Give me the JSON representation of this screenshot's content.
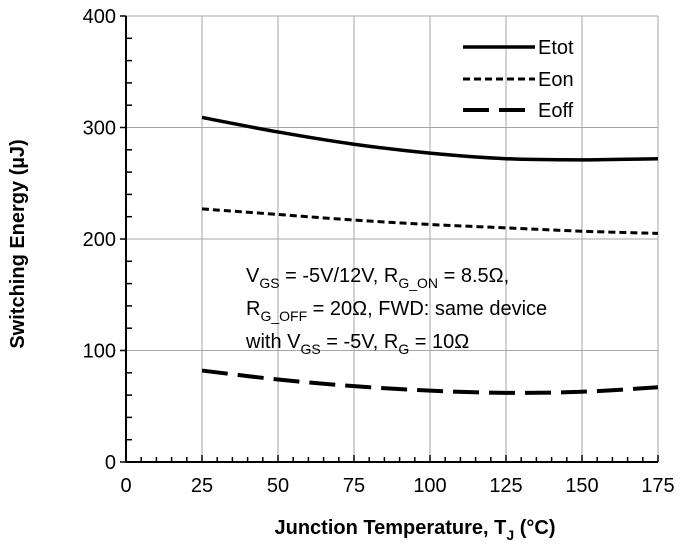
{
  "chart_data": {
    "type": "line",
    "xlabel": "Junction Temperature, T",
    "xlabel_sub": "J",
    "xlabel_unit": " (°C)",
    "ylabel": "Switching Energy (µJ)",
    "xlim": [
      0,
      175
    ],
    "ylim": [
      0,
      400
    ],
    "x_ticks": [
      0,
      25,
      50,
      75,
      100,
      125,
      150,
      175
    ],
    "y_ticks": [
      0,
      100,
      200,
      300,
      400
    ],
    "grid": true,
    "legend_position": "top-right",
    "series": [
      {
        "name": "Etot",
        "style": "solid",
        "x": [
          25,
          50,
          75,
          100,
          125,
          150,
          175
        ],
        "y": [
          309,
          296,
          285,
          277,
          272,
          271,
          272
        ]
      },
      {
        "name": "Eon",
        "style": "short-dash",
        "x": [
          25,
          50,
          75,
          100,
          125,
          150,
          175
        ],
        "y": [
          227,
          222,
          217,
          213,
          210,
          207,
          205
        ]
      },
      {
        "name": "Eoff",
        "style": "long-dash",
        "x": [
          25,
          50,
          75,
          100,
          125,
          150,
          175
        ],
        "y": [
          82,
          74,
          68,
          64,
          62,
          63,
          67
        ]
      }
    ],
    "annotation": {
      "line1": [
        {
          "t": "V"
        },
        {
          "t": "GS",
          "sub": true
        },
        {
          "t": " = -5V/12V, R"
        },
        {
          "t": "G_ON",
          "sub": true
        },
        {
          "t": " = 8.5Ω,"
        }
      ],
      "line2": [
        {
          "t": "R"
        },
        {
          "t": "G_OFF",
          "sub": true
        },
        {
          "t": " = 20Ω, FWD: same device"
        }
      ],
      "line3": [
        {
          "t": "with V"
        },
        {
          "t": "GS",
          "sub": true
        },
        {
          "t": " = -5V, R"
        },
        {
          "t": "G",
          "sub": true
        },
        {
          "t": " = 10Ω"
        }
      ]
    }
  }
}
